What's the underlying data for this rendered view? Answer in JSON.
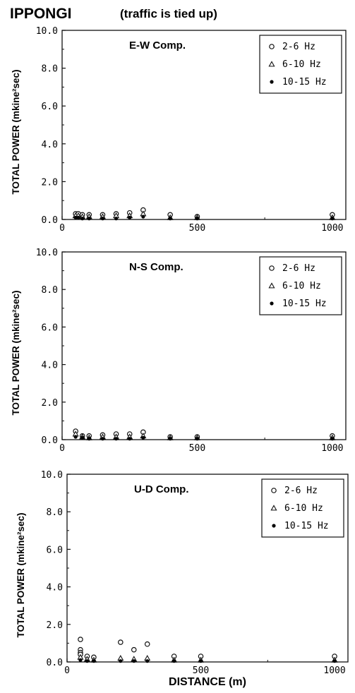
{
  "header": {
    "title": "IPPONGI",
    "subtitle": "(traffic is tied up)"
  },
  "chart_data": [
    {
      "type": "scatter",
      "title": "E-W Comp.",
      "xlabel": "",
      "ylabel": "TOTAL POWER (mkine²sec)",
      "xlim": [
        0,
        1050
      ],
      "ylim": [
        0,
        10
      ],
      "xticks": [
        "0",
        "500",
        "1000"
      ],
      "yticks": [
        "0.0",
        "2.0",
        "4.0",
        "6.0",
        "8.0",
        "10.0"
      ],
      "legend": "top-right",
      "series": [
        {
          "name": "2-6 Hz",
          "marker": "open-circle",
          "x": [
            50,
            60,
            75,
            100,
            150,
            200,
            250,
            300,
            400,
            500,
            1000
          ],
          "y": [
            0.3,
            0.3,
            0.25,
            0.25,
            0.25,
            0.3,
            0.35,
            0.5,
            0.25,
            0.15,
            0.25
          ]
        },
        {
          "name": "6-10 Hz",
          "marker": "open-triangle",
          "x": [
            50,
            60,
            75,
            100,
            150,
            200,
            250,
            300,
            400,
            500,
            1000
          ],
          "y": [
            0.2,
            0.2,
            0.15,
            0.15,
            0.15,
            0.2,
            0.2,
            0.3,
            0.1,
            0.1,
            0.1
          ]
        },
        {
          "name": "10-15 Hz",
          "marker": "filled-circle",
          "x": [
            50,
            60,
            75,
            100,
            150,
            200,
            250,
            300,
            400,
            500,
            1000
          ],
          "y": [
            0.1,
            0.1,
            0.05,
            0.05,
            0.05,
            0.05,
            0.1,
            0.15,
            0.05,
            0.05,
            0.05
          ]
        }
      ]
    },
    {
      "type": "scatter",
      "title": "N-S Comp.",
      "xlabel": "",
      "ylabel": "TOTAL POWER (mkine²sec)",
      "xlim": [
        0,
        1050
      ],
      "ylim": [
        0,
        10
      ],
      "xticks": [
        "0",
        "500",
        "1000"
      ],
      "yticks": [
        "0.0",
        "2.0",
        "4.0",
        "6.0",
        "8.0",
        "10.0"
      ],
      "legend": "top-right",
      "series": [
        {
          "name": "2-6 Hz",
          "marker": "open-circle",
          "x": [
            50,
            75,
            100,
            150,
            200,
            250,
            300,
            400,
            500,
            1000
          ],
          "y": [
            0.45,
            0.2,
            0.2,
            0.25,
            0.3,
            0.3,
            0.4,
            0.15,
            0.15,
            0.2
          ]
        },
        {
          "name": "6-10 Hz",
          "marker": "open-triangle",
          "x": [
            50,
            75,
            100,
            150,
            200,
            250,
            300,
            400,
            500,
            1000
          ],
          "y": [
            0.3,
            0.15,
            0.1,
            0.15,
            0.15,
            0.15,
            0.2,
            0.1,
            0.1,
            0.1
          ]
        },
        {
          "name": "10-15 Hz",
          "marker": "filled-circle",
          "x": [
            50,
            75,
            100,
            150,
            200,
            250,
            300,
            400,
            500,
            1000
          ],
          "y": [
            0.15,
            0.1,
            0.05,
            0.05,
            0.05,
            0.05,
            0.1,
            0.05,
            0.05,
            0.05
          ]
        }
      ]
    },
    {
      "type": "scatter",
      "title": "U-D Comp.",
      "xlabel": "DISTANCE (m)",
      "ylabel": "TOTAL POWER (mkine²sec)",
      "xlim": [
        0,
        1050
      ],
      "ylim": [
        0,
        10
      ],
      "xticks": [
        "0",
        "500",
        "1000"
      ],
      "yticks": [
        "0.0",
        "2.0",
        "4.0",
        "6.0",
        "8.0",
        "10.0"
      ],
      "legend": "top-right",
      "series": [
        {
          "name": "2-6 Hz",
          "marker": "open-circle",
          "x": [
            50,
            50,
            50,
            50,
            75,
            100,
            200,
            250,
            300,
            400,
            500,
            1000
          ],
          "y": [
            1.2,
            0.65,
            0.5,
            0.4,
            0.3,
            0.25,
            1.05,
            0.65,
            0.95,
            0.3,
            0.3,
            0.3
          ]
        },
        {
          "name": "6-10 Hz",
          "marker": "open-triangle",
          "x": [
            50,
            75,
            100,
            200,
            250,
            300,
            400,
            500,
            1000
          ],
          "y": [
            0.25,
            0.15,
            0.1,
            0.2,
            0.15,
            0.2,
            0.1,
            0.1,
            0.1
          ]
        },
        {
          "name": "10-15 Hz",
          "marker": "filled-circle",
          "x": [
            50,
            75,
            100,
            200,
            250,
            300,
            400,
            500,
            1000
          ],
          "y": [
            0.1,
            0.05,
            0.05,
            0.05,
            0.05,
            0.05,
            0.05,
            0.05,
            0.05
          ]
        }
      ]
    }
  ]
}
